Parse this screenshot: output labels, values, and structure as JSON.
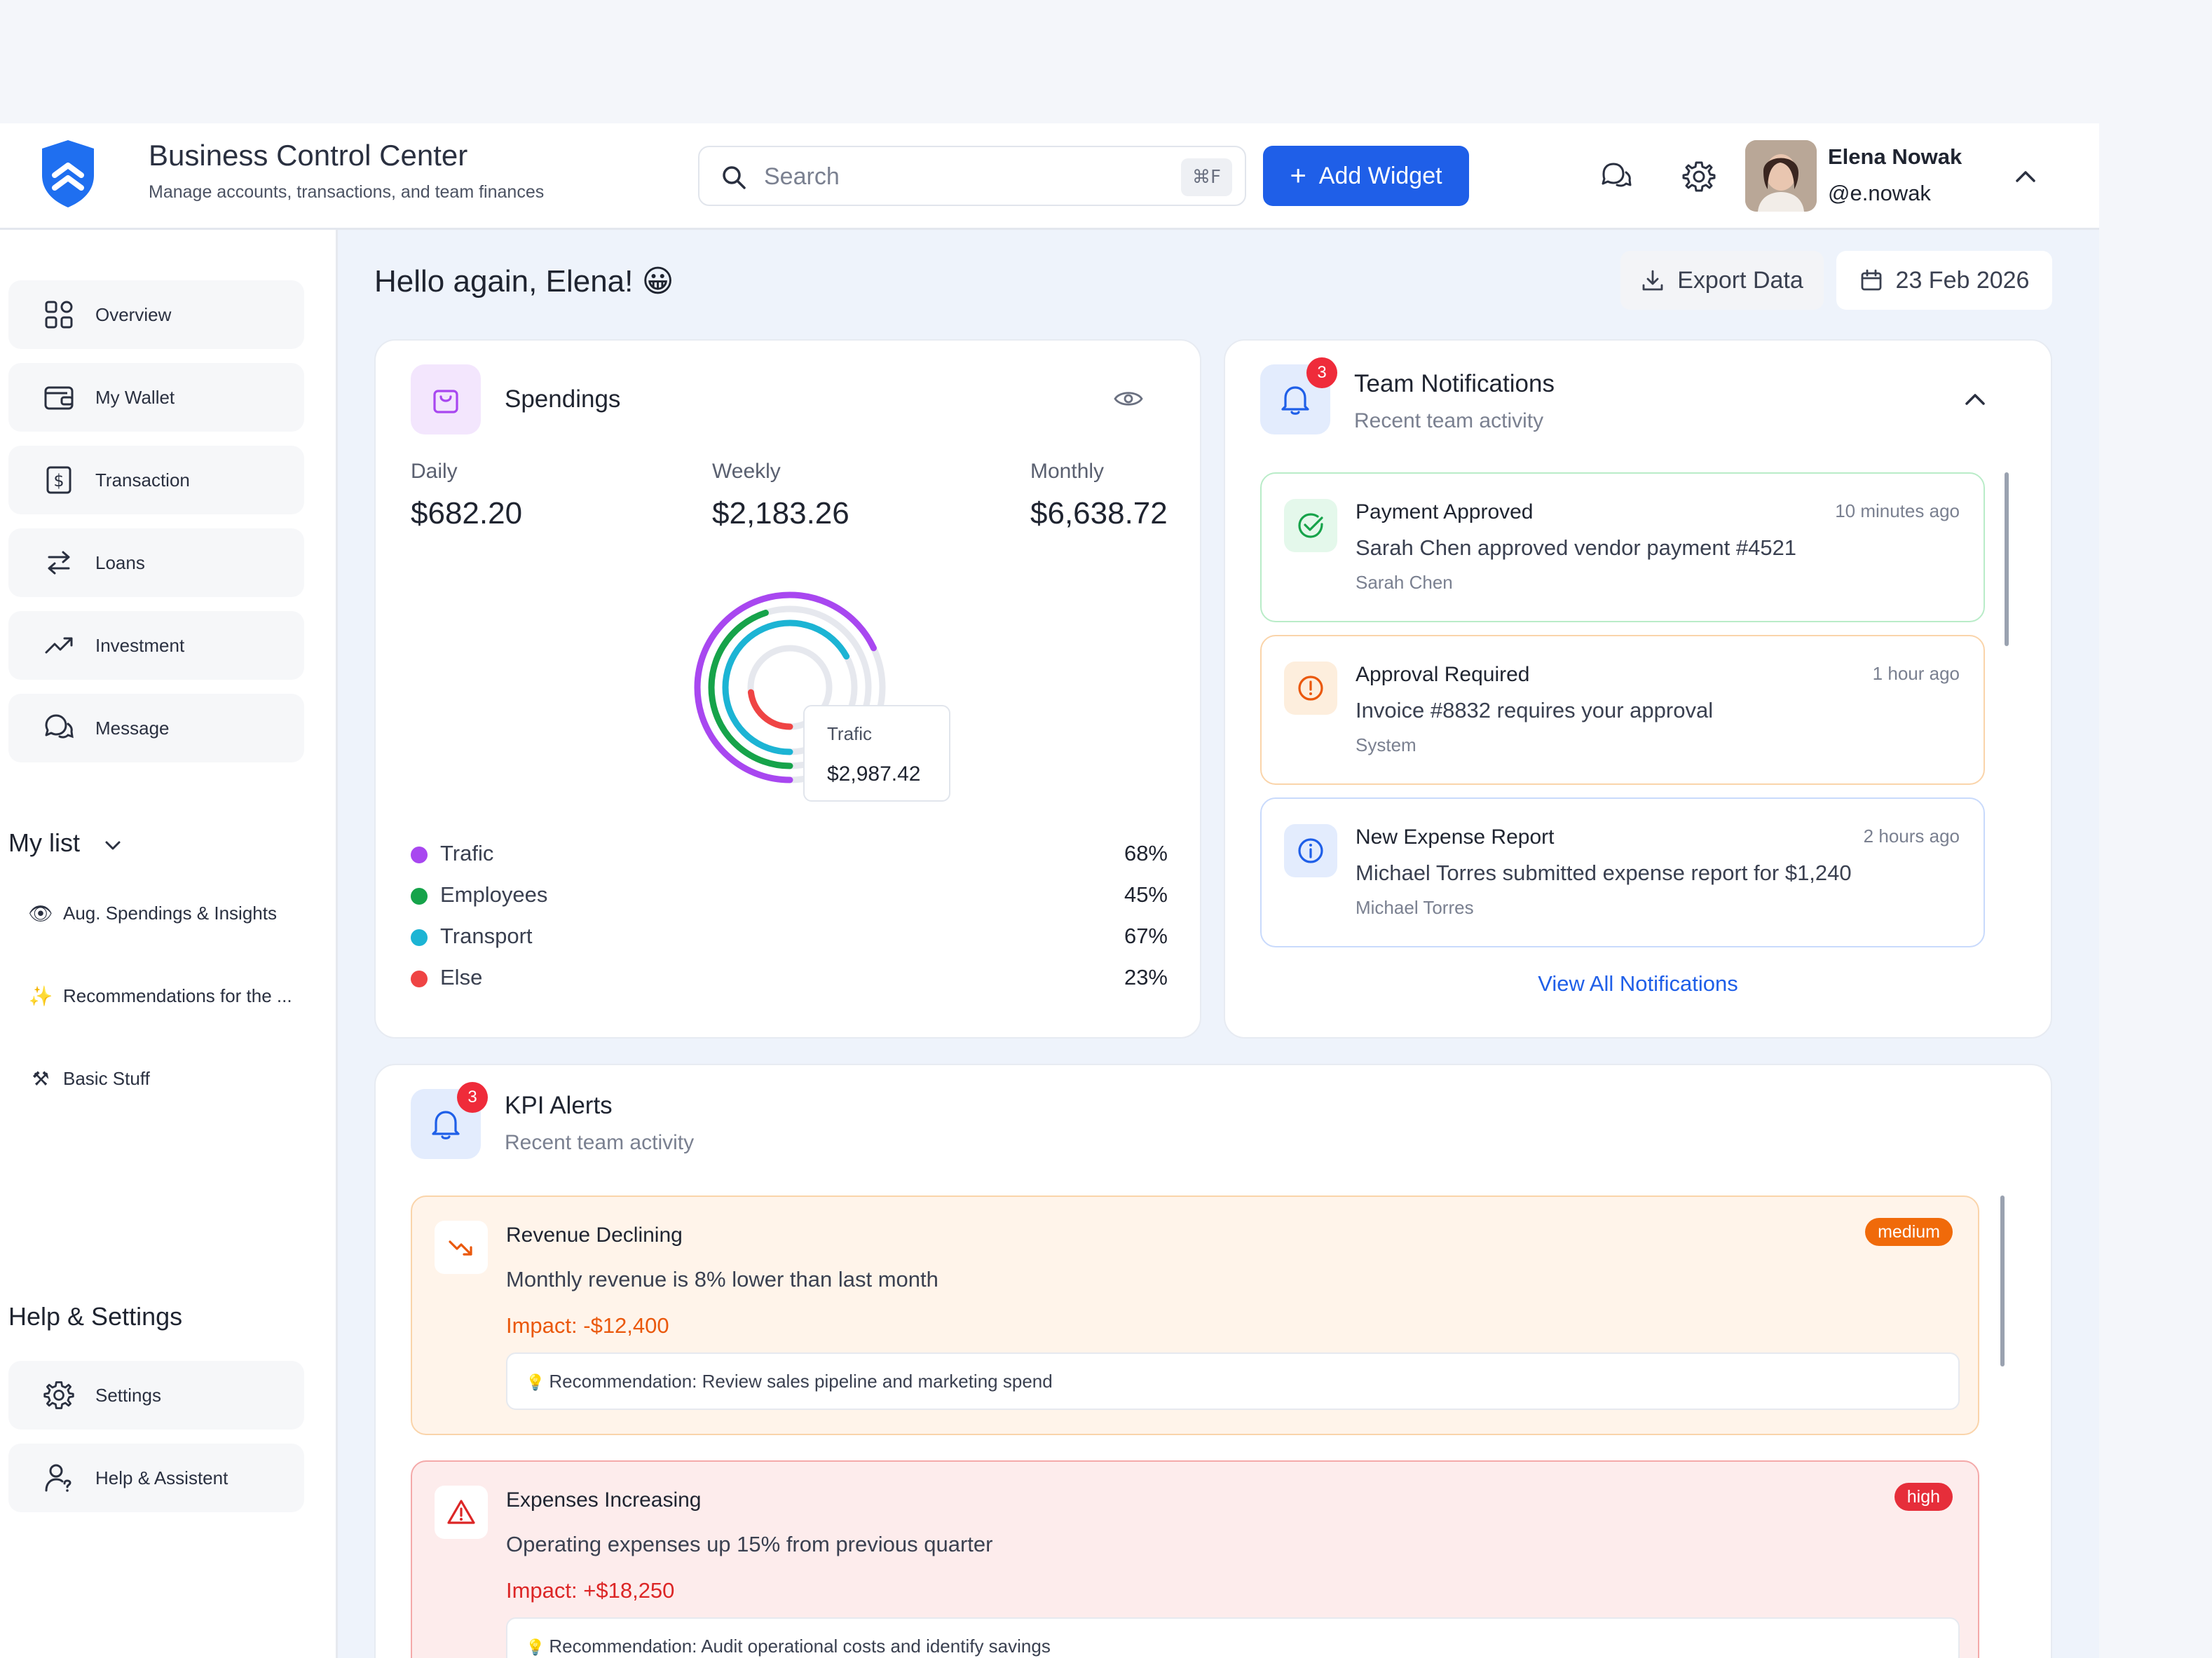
{
  "header": {
    "title": "Business Control Center",
    "subtitle": "Manage accounts, transactions, and team finances",
    "search_placeholder": "Search",
    "search_shortcut": "⌘F",
    "add_widget_label": "Add Widget",
    "user_name": "Elena Nowak",
    "user_handle": "@e.nowak"
  },
  "sidebar": {
    "nav": [
      {
        "label": "Overview",
        "icon": "grid-icon"
      },
      {
        "label": "My Wallet",
        "icon": "wallet-icon"
      },
      {
        "label": "Transaction",
        "icon": "dollar-icon"
      },
      {
        "label": "Loans",
        "icon": "arrows-swap-icon"
      },
      {
        "label": "Investment",
        "icon": "trend-up-icon"
      },
      {
        "label": "Message",
        "icon": "chat-icon"
      }
    ],
    "my_list_title": "My list",
    "my_list": [
      {
        "emoji": "👁",
        "label": "Aug. Spendings & Insights"
      },
      {
        "emoji": "✨",
        "label": "Recommendations for the ..."
      },
      {
        "emoji": "⚒",
        "label": "Basic Stuff"
      }
    ],
    "help_title": "Help & Settings",
    "help_nav": [
      {
        "label": "Settings",
        "icon": "gear-icon"
      },
      {
        "label": "Help & Assistent",
        "icon": "user-help-icon"
      }
    ]
  },
  "main": {
    "greeting": "Hello again, Elena! 😀",
    "export_label": "Export Data",
    "date_label": "23 Feb 2026"
  },
  "spendings": {
    "title": "Spendings",
    "stats": [
      {
        "label": "Daily",
        "value": "$682.20"
      },
      {
        "label": "Weekly",
        "value": "$2,183.26"
      },
      {
        "label": "Monthly",
        "value": "$6,638.72"
      }
    ],
    "tooltip_label": "Trafic",
    "tooltip_value": "$2,987.42",
    "legend": [
      {
        "name": "Trafic",
        "pct": "68%",
        "value": 68,
        "color": "#a847f0"
      },
      {
        "name": "Employees",
        "pct": "45%",
        "value": 45,
        "color": "#16a34a"
      },
      {
        "name": "Transport",
        "pct": "67%",
        "value": 67,
        "color": "#1cb4d4"
      },
      {
        "name": "Else",
        "pct": "23%",
        "value": 23,
        "color": "#ef4444"
      }
    ]
  },
  "notifications": {
    "title": "Team Notifications",
    "subtitle": "Recent team activity",
    "badge": "3",
    "items": [
      {
        "title": "Payment Approved",
        "time": "10 minutes ago",
        "body": "Sarah Chen approved vendor payment #4521",
        "who": "Sarah Chen",
        "icon": "check-circle-icon"
      },
      {
        "title": "Approval Required",
        "time": "1 hour ago",
        "body": "Invoice #8832 requires your approval",
        "who": "System",
        "icon": "alert-circle-icon"
      },
      {
        "title": "New Expense Report",
        "time": "2 hours ago",
        "body": "Michael Torres submitted expense report for $1,240",
        "who": "Michael Torres",
        "icon": "info-circle-icon"
      }
    ],
    "view_all": "View All Notifications"
  },
  "kpi": {
    "title": "KPI Alerts",
    "subtitle": "Recent team activity",
    "badge": "3",
    "alerts": [
      {
        "title": "Revenue Declining",
        "body": "Monthly revenue is 8% lower than last month",
        "impact": "Impact: -$12,400",
        "recommendation": "Recommendation: Review sales pipeline and marketing spend",
        "level": "medium",
        "icon": "trend-down-icon"
      },
      {
        "title": "Expenses Increasing",
        "body": "Operating expenses up 15% from previous quarter",
        "impact": "Impact: +$18,250",
        "recommendation": "Recommendation: Audit operational costs and identify savings",
        "level": "high",
        "icon": "warning-triangle-icon"
      }
    ]
  },
  "chart_data": {
    "type": "radial-bar",
    "categories": [
      "Trafic",
      "Employees",
      "Transport",
      "Else"
    ],
    "values": [
      68,
      45,
      67,
      23
    ],
    "colors": [
      "#a847f0",
      "#16a34a",
      "#1cb4d4",
      "#ef4444"
    ]
  }
}
